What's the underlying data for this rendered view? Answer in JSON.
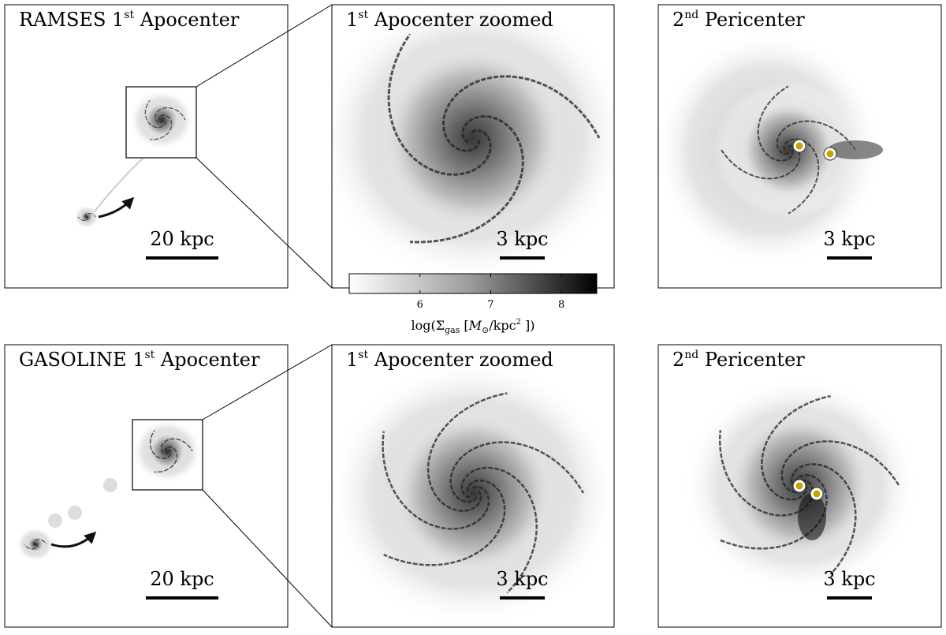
{
  "panels": [
    {
      "title": {
        "pre": "RAMSES 1",
        "sup": "st",
        "post": " Apocenter"
      },
      "scale_bar": "20 kpc"
    },
    {
      "title": {
        "pre": "1",
        "sup": "st",
        "post": " Apocenter zoomed"
      },
      "scale_bar": "3 kpc"
    },
    {
      "title": {
        "pre": "2",
        "sup": "nd",
        "post": " Pericenter"
      },
      "scale_bar": "3 kpc"
    },
    {
      "title": {
        "pre": "GASOLINE 1",
        "sup": "st",
        "post": " Apocenter"
      },
      "scale_bar": "20 kpc"
    },
    {
      "title": {
        "pre": "1",
        "sup": "st",
        "post": " Apocenter zoomed"
      },
      "scale_bar": "3 kpc"
    },
    {
      "title": {
        "pre": "2",
        "sup": "nd",
        "post": " Pericenter"
      },
      "scale_bar": "3 kpc"
    }
  ],
  "colorbar": {
    "label": {
      "a": "log(Σ",
      "sub": "gas",
      "b": " [",
      "m": "M",
      "msub": "⊙",
      "c": "/kpc",
      "sup": "2",
      "d": " ])"
    },
    "lim": [
      5,
      8.5
    ],
    "ticks": [
      6,
      7,
      8
    ]
  }
}
